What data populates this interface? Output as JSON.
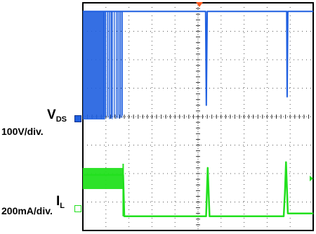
{
  "colors": {
    "ch1": "#1f5fe0",
    "ch2": "#22e01e",
    "frame": "#000000",
    "grid": "#555555",
    "background": "#ffffff",
    "trigger_marker": "#ff5a1e"
  },
  "chart_data": {
    "type": "line",
    "title": "",
    "grid": true,
    "divisions": {
      "x": 10,
      "y": 8
    },
    "series": [
      {
        "symbol": "V",
        "subscript": "DS",
        "scale": "100V/div.",
        "marker_icon": "channel-1-marker",
        "x_div": [
          0.0,
          1.75,
          1.8,
          5.33,
          5.36,
          5.4,
          8.85,
          8.87,
          8.9,
          10.0
        ],
        "y_div": [
          3.7,
          3.7,
          3.7,
          3.7,
          0.4,
          3.7,
          3.7,
          0.7,
          3.7,
          3.7
        ],
        "burst_x_div": [
          0.0,
          1.75
        ]
      },
      {
        "symbol": "I",
        "subscript": "L",
        "scale": "200mA/div.",
        "marker_icon": "channel-2-marker",
        "x_div": [
          0.0,
          1.75,
          1.8,
          5.35,
          5.42,
          5.5,
          8.72,
          8.77,
          8.82,
          8.9,
          10.0
        ],
        "y_div": [
          -2.05,
          -2.05,
          -3.5,
          -3.5,
          -1.8,
          -3.5,
          -3.5,
          -2.7,
          -1.6,
          -3.4,
          -3.4
        ],
        "burst_x_div": [
          0.0,
          1.75
        ]
      }
    ]
  }
}
